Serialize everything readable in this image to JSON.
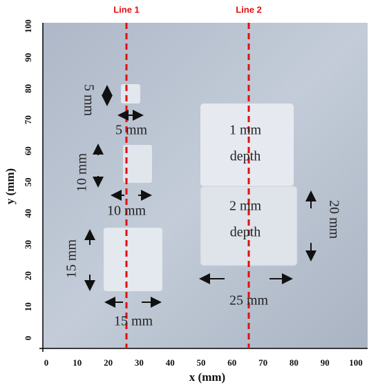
{
  "line_labels": [
    "Line 1",
    "Line 2"
  ],
  "x_axis": {
    "label": "x (mm)",
    "ticks": [
      "0",
      "10",
      "20",
      "30",
      "40",
      "50",
      "60",
      "70",
      "80",
      "90",
      "100"
    ]
  },
  "y_axis": {
    "label": "y (mm)",
    "ticks": [
      "0",
      "10",
      "20",
      "30",
      "40",
      "50",
      "60",
      "70",
      "80",
      "90",
      "100"
    ]
  },
  "annotations": {
    "small_height": "5 mm",
    "small_width": "5 mm",
    "medium_height": "10 mm",
    "medium_width": "10 mm",
    "large_height": "15 mm",
    "large_width": "15 mm",
    "top_depth": [
      "1 mm",
      "depth"
    ],
    "bottom_depth": [
      "2 mm",
      "depth"
    ],
    "rect_height": "20 mm",
    "rect_width": "25 mm"
  }
}
